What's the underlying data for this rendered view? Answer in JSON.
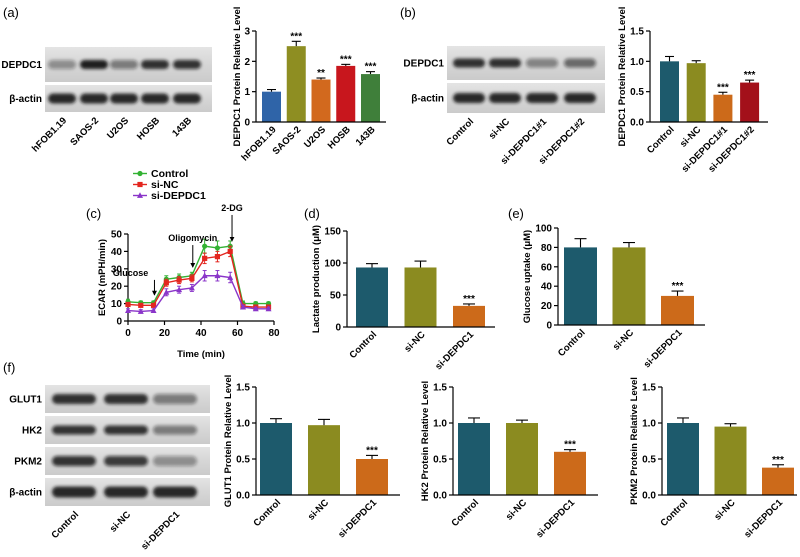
{
  "panel_labels": [
    "(a)",
    "(b)",
    "(c)",
    "(d)",
    "(e)",
    "(f)"
  ],
  "blots": [
    {
      "rows": [
        {
          "label": "DEPDC1",
          "band_density": [
            0.3,
            0.95,
            0.4,
            0.85,
            0.8
          ]
        },
        {
          "label": "β-actin",
          "band_density": [
            0.9,
            0.9,
            0.9,
            0.9,
            0.9
          ]
        }
      ],
      "lanes": [
        "hFOB1.19",
        "SAOS-2",
        "U2OS",
        "HOSB",
        "143B"
      ]
    },
    {
      "rows": [
        {
          "label": "DEPDC1",
          "band_density": [
            0.85,
            0.85,
            0.35,
            0.5
          ]
        },
        {
          "label": "β-actin",
          "band_density": [
            0.9,
            0.9,
            0.9,
            0.9
          ]
        }
      ],
      "lanes": [
        "Control",
        "si-NC",
        "si-DEPDC1#1",
        "si-DEPDC1#2"
      ]
    },
    {
      "rows": [
        {
          "label": "GLUT1",
          "band_density": [
            0.85,
            0.85,
            0.4
          ]
        },
        {
          "label": "HK2",
          "band_density": [
            0.8,
            0.8,
            0.4
          ]
        },
        {
          "label": "PKM2",
          "band_density": [
            0.8,
            0.75,
            0.3
          ]
        },
        {
          "label": "β-actin",
          "band_density": [
            0.9,
            0.9,
            0.9
          ]
        }
      ],
      "lanes": [
        "Control",
        "si-NC",
        "si-DEPDC1"
      ]
    }
  ],
  "chart_data": [
    {
      "type": "bar",
      "ylabel": "DEPDC1 Protein Relative Level",
      "ylim": [
        0,
        3
      ],
      "yticks": [
        0,
        1,
        2,
        3
      ],
      "ytick_labels": [
        "0",
        "1",
        "2",
        "3"
      ],
      "categories": [
        "hFOB1.19",
        "SAOS-2",
        "U2OS",
        "HOSB",
        "143B"
      ],
      "values": [
        1.0,
        2.5,
        1.4,
        1.85,
        1.58
      ],
      "errors": [
        0.07,
        0.16,
        0.05,
        0.05,
        0.08
      ],
      "significance": [
        "",
        "***",
        "**",
        "***",
        "***"
      ],
      "colors": [
        "#2f64a8",
        "#8e8e22",
        "#d2691e",
        "#c8161d",
        "#3f7f3a"
      ]
    },
    {
      "type": "bar",
      "ylabel": "DEPDC1 Protein Relative Level",
      "ylim": [
        0,
        1.5
      ],
      "yticks": [
        0,
        0.5,
        1.0,
        1.5
      ],
      "ytick_labels": [
        "0.0",
        "0.5",
        "1.0",
        "1.5"
      ],
      "categories": [
        "Control",
        "si-NC",
        "si-DEPDC1#1",
        "si-DEPDC1#2"
      ],
      "values": [
        1.0,
        0.97,
        0.45,
        0.65
      ],
      "errors": [
        0.08,
        0.04,
        0.04,
        0.04
      ],
      "significance": [
        "",
        "",
        "***",
        "***"
      ],
      "colors": [
        "#1d5a6c",
        "#8b8b20",
        "#cc6a1a",
        "#a3101a"
      ]
    },
    {
      "type": "line",
      "ylabel": "ECAR (mPH/min)",
      "xlabel": "Time (min)",
      "xlim": [
        0,
        80
      ],
      "ylim": [
        0,
        50
      ],
      "xticks": [
        0,
        20,
        40,
        60,
        80
      ],
      "xtick_labels": [
        "0",
        "20",
        "40",
        "60",
        "80"
      ],
      "yticks": [
        0,
        10,
        20,
        30,
        40,
        50
      ],
      "ytick_labels": [
        "0",
        "10",
        "20",
        "30",
        "40",
        "50"
      ],
      "x": [
        0,
        7,
        14,
        21,
        28,
        35,
        42,
        49,
        56,
        63,
        70,
        77
      ],
      "series": [
        {
          "name": "Control",
          "color": "#33b233",
          "marker": "circle",
          "values": [
            11,
            10.5,
            10.5,
            24,
            25,
            26,
            43,
            42,
            43,
            10,
            10,
            10
          ],
          "errors": [
            1.5,
            1,
            1,
            2,
            2,
            2,
            4,
            4,
            3,
            1.5,
            1,
            1
          ]
        },
        {
          "name": "si-NC",
          "color": "#e3261f",
          "marker": "square",
          "values": [
            9.5,
            9,
            9,
            22,
            23.5,
            24.5,
            36,
            37,
            40,
            8.5,
            8,
            8
          ],
          "errors": [
            1,
            1,
            1,
            2,
            2,
            2,
            3,
            3,
            3,
            1,
            1,
            1
          ]
        },
        {
          "name": "si-DEPDC1",
          "color": "#8a35c9",
          "marker": "triangle",
          "values": [
            6,
            5.5,
            6,
            16.5,
            18,
            19,
            26,
            26,
            25,
            8,
            7,
            7
          ],
          "errors": [
            1,
            1,
            1,
            2,
            2,
            2,
            3,
            3,
            3,
            1,
            1,
            1
          ]
        }
      ],
      "annotations": [
        {
          "text": "Glucose",
          "x": 14.5,
          "y": 15
        },
        {
          "text": "Oligomycin",
          "x": 35.5,
          "y": 31
        },
        {
          "text": "2-DG",
          "x": 57,
          "y": 46
        }
      ]
    },
    {
      "type": "bar",
      "ylabel": "Lactate production (μM)",
      "ylim": [
        0,
        150
      ],
      "yticks": [
        0,
        50,
        100,
        150
      ],
      "ytick_labels": [
        "0",
        "50",
        "100",
        "150"
      ],
      "categories": [
        "Control",
        "si-NC",
        "si-DEPDC1"
      ],
      "values": [
        93,
        93,
        33
      ],
      "errors": [
        6,
        10,
        3
      ],
      "significance": [
        "",
        "",
        "***"
      ],
      "colors": [
        "#1d5a6c",
        "#8b8b20",
        "#cc6a1a"
      ]
    },
    {
      "type": "bar",
      "ylabel": "Glucose uptake (μM)",
      "ylim": [
        0,
        100
      ],
      "yticks": [
        0,
        20,
        40,
        60,
        80,
        100
      ],
      "ytick_labels": [
        "0",
        "20",
        "40",
        "60",
        "80",
        "100"
      ],
      "categories": [
        "Control",
        "si-NC",
        "si-DEPDC1"
      ],
      "values": [
        80,
        80,
        30
      ],
      "errors": [
        9,
        5,
        5
      ],
      "significance": [
        "",
        "",
        "***"
      ],
      "colors": [
        "#1d5a6c",
        "#8b8b20",
        "#cc6a1a"
      ]
    },
    {
      "type": "bar",
      "ylabel": "GLUT1 Protein Relative Level",
      "ylim": [
        0,
        1.5
      ],
      "yticks": [
        0,
        0.5,
        1.0,
        1.5
      ],
      "ytick_labels": [
        "0.0",
        "0.5",
        "1.0",
        "1.5"
      ],
      "categories": [
        "Control",
        "si-NC",
        "si-DEPDC1"
      ],
      "values": [
        1.0,
        0.97,
        0.5
      ],
      "errors": [
        0.06,
        0.08,
        0.05
      ],
      "significance": [
        "",
        "",
        "***"
      ],
      "colors": [
        "#1d5a6c",
        "#8b8b20",
        "#cc6a1a"
      ]
    },
    {
      "type": "bar",
      "ylabel": "HK2 Protein Relative Level",
      "ylim": [
        0,
        1.5
      ],
      "yticks": [
        0,
        0.5,
        1.0,
        1.5
      ],
      "ytick_labels": [
        "0.0",
        "0.5",
        "1.0",
        "1.5"
      ],
      "categories": [
        "Control",
        "si-NC",
        "si-DEPDC1"
      ],
      "values": [
        1.0,
        1.0,
        0.6
      ],
      "errors": [
        0.07,
        0.04,
        0.03
      ],
      "significance": [
        "",
        "",
        "***"
      ],
      "colors": [
        "#1d5a6c",
        "#8b8b20",
        "#cc6a1a"
      ]
    },
    {
      "type": "bar",
      "ylabel": "PKM2 Protein Relative Level",
      "ylim": [
        0,
        1.5
      ],
      "yticks": [
        0,
        0.5,
        1.0,
        1.5
      ],
      "ytick_labels": [
        "0.0",
        "0.5",
        "1.0",
        "1.5"
      ],
      "categories": [
        "Control",
        "si-NC",
        "si-DEPDC1"
      ],
      "values": [
        1.0,
        0.95,
        0.38
      ],
      "errors": [
        0.07,
        0.04,
        0.04
      ],
      "significance": [
        "",
        "",
        "***"
      ],
      "colors": [
        "#1d5a6c",
        "#8b8b20",
        "#cc6a1a"
      ]
    }
  ]
}
